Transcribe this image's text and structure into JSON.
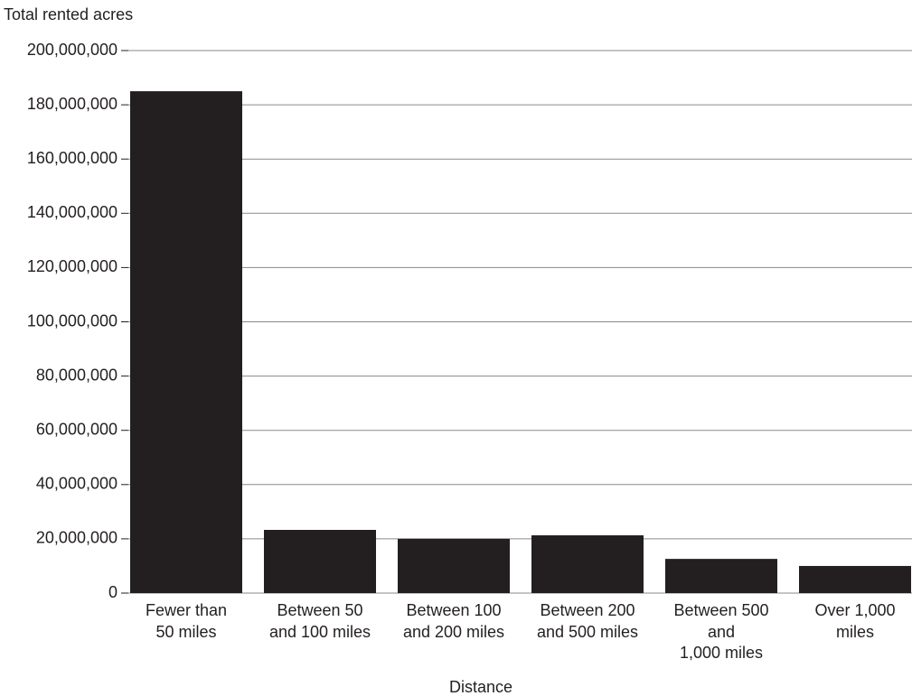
{
  "chart_data": {
    "type": "bar",
    "y_label": "Total rented acres",
    "x_label": "Distance",
    "categories": [
      "Fewer than\n50 miles",
      "Between 50\nand 100 miles",
      "Between 100\nand 200 miles",
      "Between 200\nand 500 miles",
      "Between 500\nand\n1,000 miles",
      "Over 1,000\nmiles"
    ],
    "values": [
      185000000,
      23300000,
      20000000,
      21300000,
      12600000,
      10000000
    ],
    "color": "#231f20",
    "ylim": [
      0,
      200000000
    ],
    "yticks": [
      0,
      {
        "value": 20000000,
        "label": "20,000,000"
      },
      {
        "value": 40000000,
        "label": "40,000,000"
      },
      {
        "value": 60000000,
        "label": "60,000,000"
      },
      {
        "value": 80000000,
        "label": "80,000,000"
      },
      {
        "value": 100000000,
        "label": "100,000,000"
      },
      {
        "value": 120000000,
        "label": "120,000,000"
      },
      {
        "value": 140000000,
        "label": "140,000,000"
      },
      {
        "value": 160000000,
        "label": "160,000,000"
      },
      {
        "value": 180000000,
        "label": "180,000,000"
      },
      {
        "value": 200000000,
        "label": "200,000,000"
      }
    ],
    "grid": true
  }
}
